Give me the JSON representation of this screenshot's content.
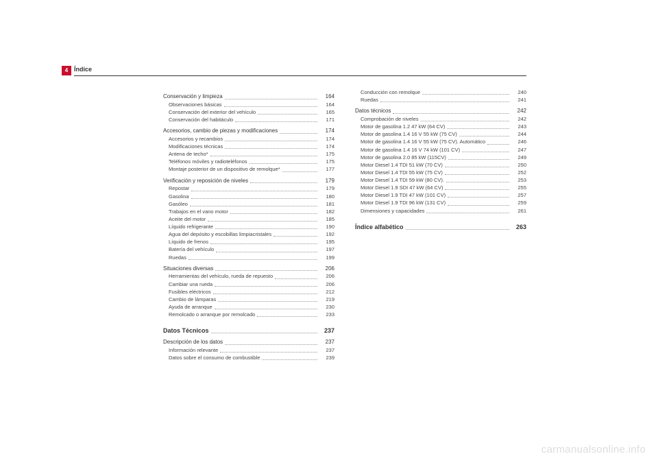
{
  "page_number": "4",
  "header": "Índice",
  "watermark": "carmanualsonline.info",
  "colors": {
    "tab_bg": "#c8102e",
    "tab_fg": "#ffffff",
    "text": "#333333",
    "rule": "#333333",
    "dots": "#999999",
    "watermark": "#dddddd"
  },
  "col1": [
    {
      "level": "heading",
      "label": "Conservación y limpieza",
      "page": "164"
    },
    {
      "level": "sub",
      "label": "Observaciones básicas",
      "page": "164"
    },
    {
      "level": "sub",
      "label": "Conservación del exterior del vehículo",
      "page": "165"
    },
    {
      "level": "sub",
      "label": "Conservación del habitáculo",
      "page": "171"
    },
    {
      "level": "heading",
      "label": "Accesorios, cambio de piezas y modificaciones",
      "page": "174"
    },
    {
      "level": "sub",
      "label": "Accesorios y recambios",
      "page": "174"
    },
    {
      "level": "sub",
      "label": "Modificaciones técnicas",
      "page": "174"
    },
    {
      "level": "sub",
      "label": "Antena de techo*",
      "page": "175"
    },
    {
      "level": "sub",
      "label": "Teléfonos móviles y radioteléfonos",
      "page": "175"
    },
    {
      "level": "sub",
      "label": "Montaje posterior de un dispositivo de remolque*",
      "page": "177"
    },
    {
      "level": "heading",
      "label": "Verificación y reposición de niveles",
      "page": "179"
    },
    {
      "level": "sub",
      "label": "Repostar",
      "page": "179"
    },
    {
      "level": "sub",
      "label": "Gasolina",
      "page": "180"
    },
    {
      "level": "sub",
      "label": "Gasóleo",
      "page": "181"
    },
    {
      "level": "sub",
      "label": "Trabajos en el vano motor",
      "page": "182"
    },
    {
      "level": "sub",
      "label": "Aceite del motor",
      "page": "185"
    },
    {
      "level": "sub",
      "label": "Líquido refrigerante",
      "page": "190"
    },
    {
      "level": "sub",
      "label": "Agua del depósito y escobillas limpiacristales",
      "page": "192"
    },
    {
      "level": "sub",
      "label": "Líquido de frenos",
      "page": "195"
    },
    {
      "level": "sub",
      "label": "Batería del vehículo",
      "page": "197"
    },
    {
      "level": "sub",
      "label": "Ruedas",
      "page": "199"
    },
    {
      "level": "heading",
      "label": "Situaciones diversas",
      "page": "206"
    },
    {
      "level": "sub",
      "label": "Herramientas del vehículo, rueda de repuesto",
      "page": "206"
    },
    {
      "level": "sub",
      "label": "Cambiar una rueda",
      "page": "206"
    },
    {
      "level": "sub",
      "label": "Fusibles eléctricos",
      "page": "212"
    },
    {
      "level": "sub",
      "label": "Cambio de lámparas",
      "page": "219"
    },
    {
      "level": "sub",
      "label": "Ayuda de arranque",
      "page": "230"
    },
    {
      "level": "sub",
      "label": "Remolcado o arranque por remolcado",
      "page": "233"
    },
    {
      "level": "section",
      "label": "Datos Técnicos",
      "page": "237"
    },
    {
      "level": "heading",
      "label": "Descripción de los datos",
      "page": "237"
    },
    {
      "level": "sub",
      "label": "Información relevante",
      "page": "237"
    },
    {
      "level": "sub",
      "label": "Datos sobre el consumo de combustible",
      "page": "239"
    }
  ],
  "col2": [
    {
      "level": "sub",
      "label": "Conducción con remolque",
      "page": "240"
    },
    {
      "level": "sub",
      "label": "Ruedas",
      "page": "241"
    },
    {
      "level": "heading",
      "label": "Datos técnicos",
      "page": "242"
    },
    {
      "level": "sub",
      "label": "Comprobación de niveles",
      "page": "242"
    },
    {
      "level": "sub",
      "label": "Motor de gasolina 1.2 47 kW (64 CV)",
      "page": "243"
    },
    {
      "level": "sub",
      "label": "Motor de gasolina 1.4 16 V 55 kW (75 CV)",
      "page": "244"
    },
    {
      "level": "sub",
      "label": "Motor de gasolina 1.4 16 V 55 kW (75 CV). Automático",
      "page": "246"
    },
    {
      "level": "sub",
      "label": "Motor de gasolina 1.4 16 V 74 kW (101 CV)",
      "page": "247"
    },
    {
      "level": "sub",
      "label": "Motor de gasolina 2.0 85 kW (115CV)",
      "page": "249"
    },
    {
      "level": "sub",
      "label": "Motor Diesel 1.4 TDI 51 kW (70 CV)",
      "page": "250"
    },
    {
      "level": "sub",
      "label": "Motor Diesel 1.4 TDI 55 kW (75 CV)",
      "page": "252"
    },
    {
      "level": "sub",
      "label": "Motor Diesel 1.4 TDI 59 kW (80 CV).",
      "page": "253"
    },
    {
      "level": "sub",
      "label": "Motor Diesel 1.9 SDI 47 kW (64 CV)",
      "page": "255"
    },
    {
      "level": "sub",
      "label": "Motor Diesel 1.9 TDI 47 kW (101 CV)",
      "page": "257"
    },
    {
      "level": "sub",
      "label": "Motor Diesel 1.9 TDI 96 kW (131 CV)",
      "page": "259"
    },
    {
      "level": "sub",
      "label": "Dimensiones y capacidades",
      "page": "261"
    },
    {
      "level": "section",
      "label": "Índice alfabético",
      "page": "263"
    }
  ]
}
